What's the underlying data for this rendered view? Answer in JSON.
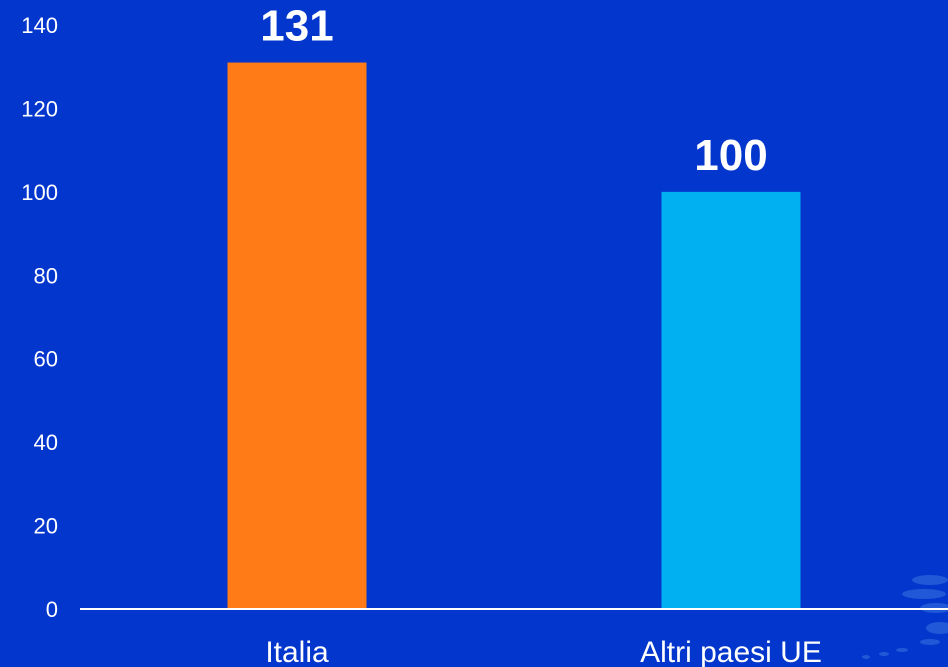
{
  "chart_data": {
    "type": "bar",
    "title": "",
    "xlabel": "",
    "ylabel": "",
    "categories": [
      "Italia",
      "Altri paesi UE"
    ],
    "values": [
      131,
      100
    ],
    "data_labels": [
      "131",
      "100"
    ],
    "ylim": [
      0,
      140
    ],
    "yticks": [
      0,
      20,
      40,
      60,
      80,
      100,
      120,
      140
    ],
    "ytick_labels": [
      "0",
      "20",
      "40",
      "60",
      "80",
      "100",
      "120",
      "140"
    ],
    "grid": false,
    "legend": "none",
    "colors": {
      "background": "#0336cc",
      "bars": [
        "#ff7b17",
        "#00b0f0"
      ],
      "text": "#ffffff",
      "axis": "#ffffff"
    }
  }
}
